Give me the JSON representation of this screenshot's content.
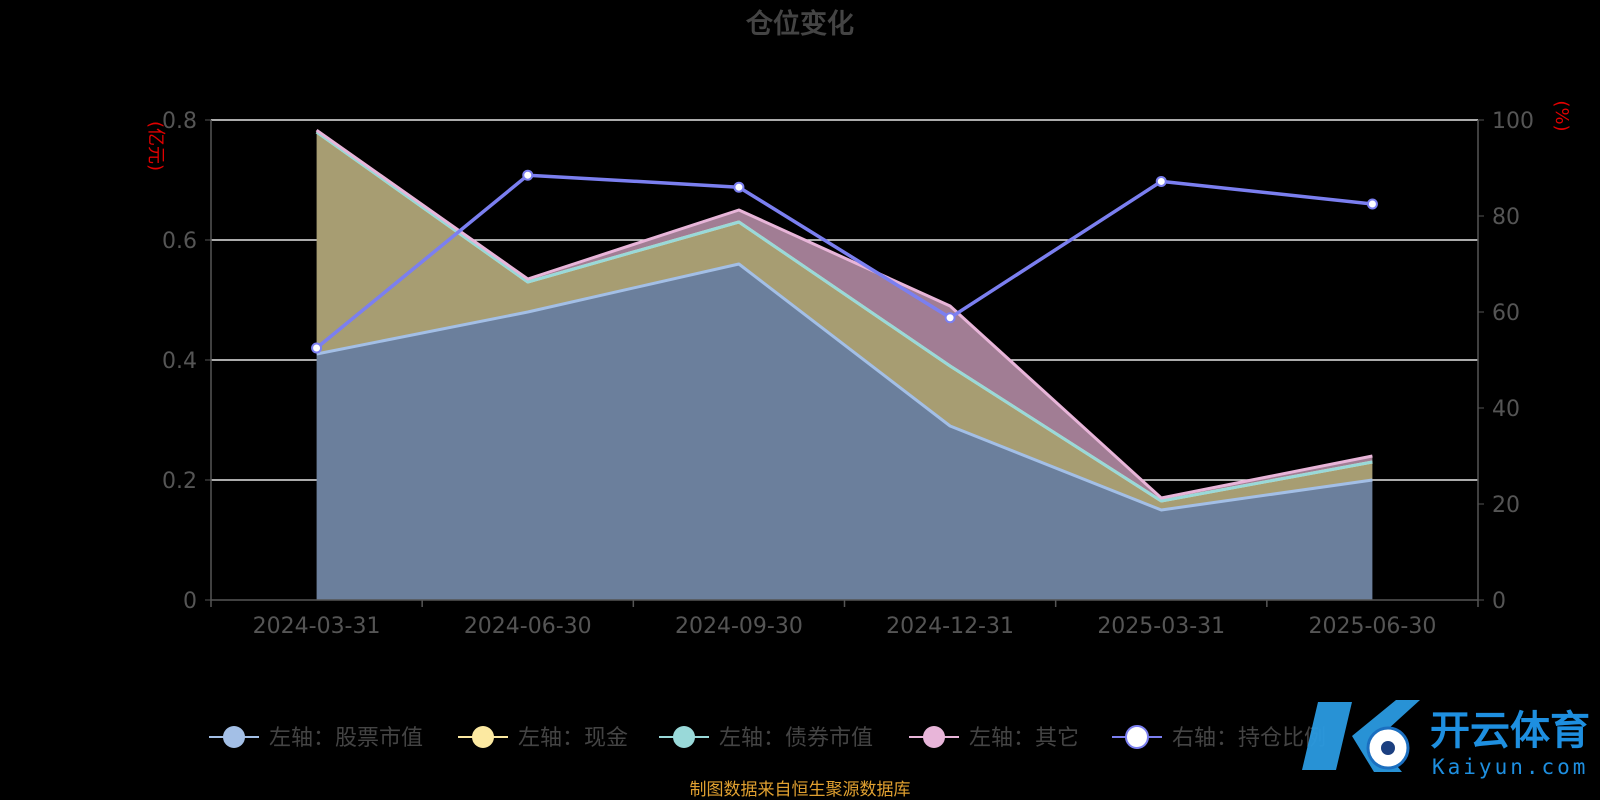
{
  "chart_data": {
    "type": "area",
    "title": "仓位变化",
    "left_axis_unit": "(亿元)",
    "right_axis_unit": "(%)",
    "categories": [
      "2024-03-31",
      "2024-06-30",
      "2024-09-30",
      "2024-12-31",
      "2025-03-31",
      "2025-06-30"
    ],
    "left_ylim": [
      0,
      0.8
    ],
    "left_yticks": [
      "0",
      "0.2",
      "0.4",
      "0.6",
      "0.8"
    ],
    "right_ylim": [
      0,
      100
    ],
    "right_yticks": [
      "0",
      "20",
      "40",
      "60",
      "80",
      "100"
    ],
    "grid": true,
    "stacked": true,
    "legend_position": "bottom",
    "series": [
      {
        "name": "左轴：股票市值",
        "axis": "left",
        "kind": "area",
        "color": "#a3bfe6",
        "fill": "#6b7f9c",
        "values": [
          0.41,
          0.48,
          0.56,
          0.29,
          0.15,
          0.2
        ]
      },
      {
        "name": "左轴：现金",
        "axis": "left",
        "kind": "area",
        "color": "#fce9a1",
        "fill": "#a79d72",
        "values": [
          0.37,
          0.05,
          0.07,
          0.1,
          0.015,
          0.03
        ]
      },
      {
        "name": "左轴：债券市值",
        "axis": "left",
        "kind": "area",
        "color": "#99d9d9",
        "fill": "#5f8b8b",
        "values": [
          0,
          0,
          0,
          0,
          0,
          0
        ]
      },
      {
        "name": "左轴：其它",
        "axis": "left",
        "kind": "area",
        "color": "#e8b5d9",
        "fill": "#a17d94",
        "values": [
          0.003,
          0.005,
          0.02,
          0.1,
          0.005,
          0.01
        ]
      },
      {
        "name": "右轴：持仓比例",
        "axis": "right",
        "kind": "line",
        "color": "#7b7ff0",
        "values": [
          52.5,
          88.5,
          86.0,
          58.8,
          87.2,
          82.5
        ]
      }
    ],
    "source_note": "制图数据来自恒生聚源数据库"
  },
  "watermark": {
    "brand": "开云体育",
    "domain": "Kaiyun.com"
  }
}
